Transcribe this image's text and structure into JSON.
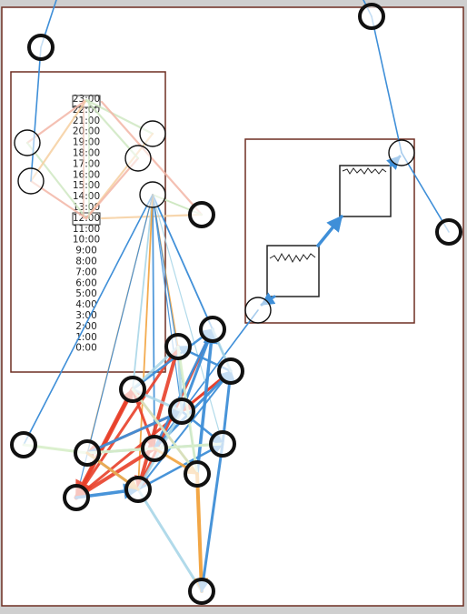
{
  "colors": {
    "edge_blue": "#3f8fd8",
    "edge_red": "#e8402a",
    "edge_orange": "#f2a23c",
    "edge_lightblue": "#a9d6e8",
    "edge_lightgreen": "#d8efc9",
    "panel_border": "#6e2f22",
    "node_stroke": "#111111"
  },
  "timeline": {
    "hour_labels": [
      "23:00",
      "22:00",
      "21:00",
      "20:00",
      "19:00",
      "18:00",
      "17:00",
      "16:00",
      "15:00",
      "14:00",
      "13:00",
      "12:00",
      "11:00",
      "10:00",
      "9:00",
      "8:00",
      "7:00",
      "6:00",
      "5:00",
      "4:00",
      "3:00",
      "2:00",
      "1:00",
      "0:00"
    ]
  },
  "nodes": {
    "count_thick": 18,
    "count_thin": 6
  }
}
